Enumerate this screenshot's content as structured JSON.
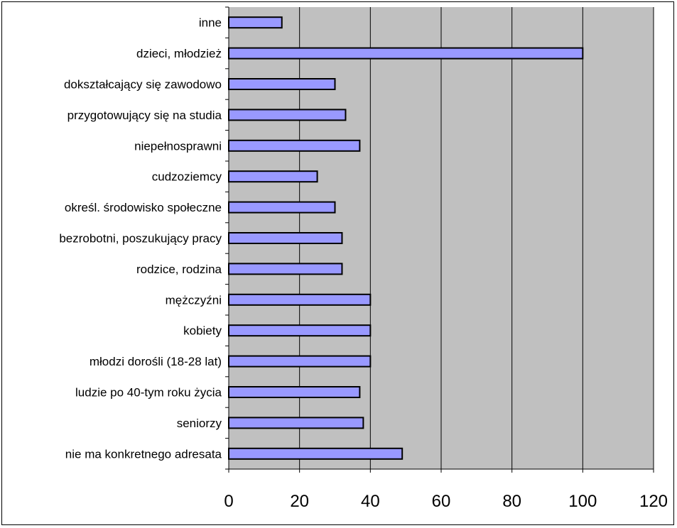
{
  "chart_data": {
    "type": "bar",
    "orientation": "horizontal",
    "categories": [
      "inne",
      "dzieci, młodzież",
      "dokształcający się zawodowo",
      "przygotowujący się na studia",
      "niepełnosprawni",
      "cudzoziemcy",
      "określ. środowisko społeczne",
      "bezrobotni, poszukujący pracy",
      "rodzice, rodzina",
      "mężczyźni",
      "kobiety",
      "młodzi dorośli (18-28 lat)",
      "ludzie po 40-tym roku życia",
      "seniorzy",
      "nie ma konkretnego adresata"
    ],
    "values": [
      15,
      100,
      30,
      33,
      37,
      25,
      30,
      32,
      32,
      40,
      40,
      40,
      37,
      38,
      49
    ],
    "xlim": [
      0,
      120
    ],
    "xticks": [
      0,
      20,
      40,
      60,
      80,
      100,
      120
    ],
    "xtick_labels": [
      "0",
      "20",
      "40",
      "60",
      "80",
      "100",
      "120"
    ],
    "grid": "vertical",
    "legend": "none",
    "title": "",
    "xlabel": "",
    "ylabel": ""
  },
  "colors": {
    "bar_fill": "#9999FF",
    "bar_stroke": "#000000",
    "plot_background": "#C0C0C0",
    "gridline": "#000000",
    "page_background": "#FFFFFF"
  }
}
